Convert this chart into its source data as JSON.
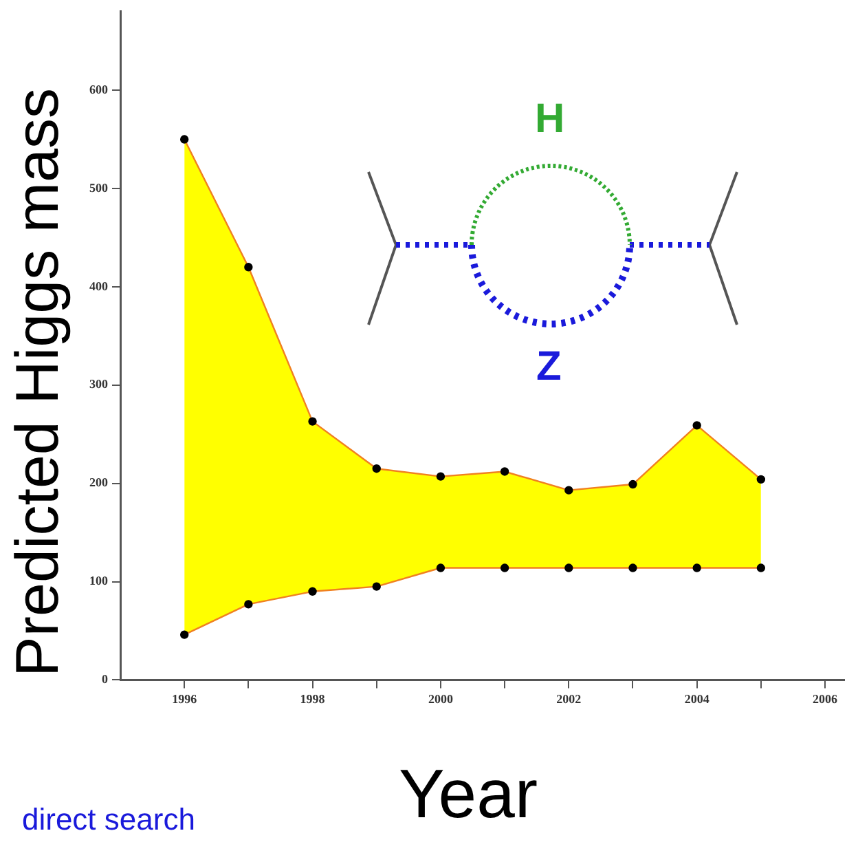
{
  "chart_data": {
    "type": "area",
    "xlabel": "Year",
    "ylabel": "Predicted Higgs mass",
    "x": [
      1996,
      1997,
      1998,
      1999,
      2000,
      2001,
      2002,
      2003,
      2004,
      2005
    ],
    "series": [
      {
        "color": "#ffff00",
        "values": [
          550,
          420,
          263,
          215,
          207,
          212,
          193,
          199,
          259,
          204
        ]
      },
      {
        "type": "line",
        "color": "#f08020",
        "values": [
          46,
          77,
          90,
          95,
          114,
          114,
          114,
          114,
          114,
          114
        ]
      }
    ],
    "marker": "circle",
    "xlim": [
      1995,
      2006.3
    ],
    "ylim": [
      0,
      680
    ],
    "xticks": [
      1996,
      {
        "value": 1997,
        "label": null
      },
      1998,
      {
        "value": 1999,
        "label": null
      },
      2000,
      {
        "value": 2001,
        "label": null
      },
      2002,
      {
        "value": 2003,
        "label": null
      },
      2004,
      {
        "value": 2005,
        "label": null
      },
      2006
    ],
    "yticks": [
      0,
      100,
      200,
      300,
      400,
      500,
      600
    ],
    "annotations": [
      "H",
      "Z",
      "direct search"
    ]
  }
}
